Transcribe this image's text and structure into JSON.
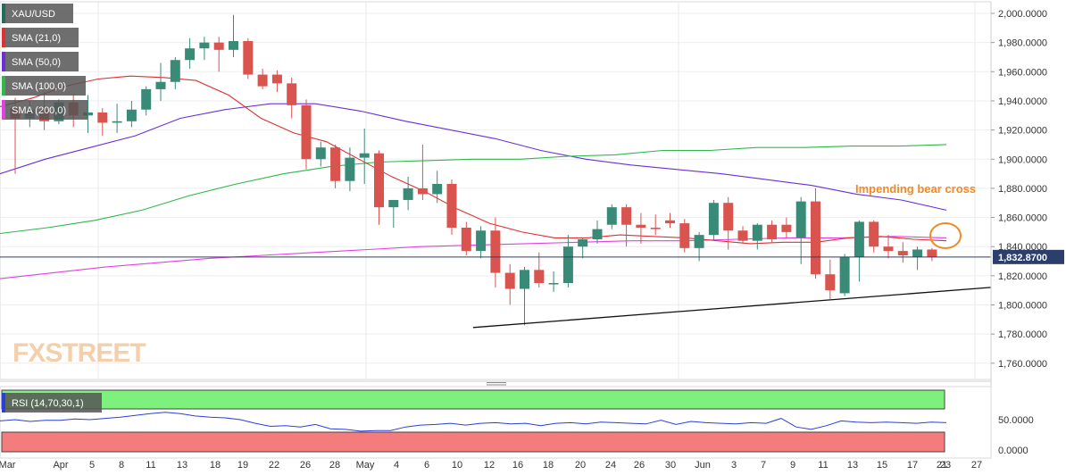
{
  "chart_data": {
    "type": "candlestick",
    "symbol": "XAU/USD",
    "ylim": [
      1750,
      2005
    ],
    "y_ticks": [
      "2,000.0000",
      "1,980.0000",
      "1,960.0000",
      "1,940.0000",
      "1,920.0000",
      "1,900.0000",
      "1,880.0000",
      "1,860.0000",
      "1,840.0000",
      "1,820.0000",
      "1,800.0000",
      "1,780.0000",
      "1,760.0000"
    ],
    "y_tick_values": [
      2000,
      1980,
      1960,
      1940,
      1920,
      1900,
      1880,
      1860,
      1840,
      1820,
      1800,
      1780,
      1760
    ],
    "x_labels": [
      "Mar",
      "Apr",
      "5",
      "8",
      "11",
      "13",
      "18",
      "19",
      "22",
      "26",
      "28",
      "May",
      "4",
      "6",
      "10",
      "12",
      "16",
      "18",
      "20",
      "24",
      "26",
      "30",
      "Jun",
      "3",
      "7",
      "9",
      "11",
      "13",
      "15",
      "17",
      "21",
      "23",
      "27"
    ],
    "last_price": "1,832.8700",
    "last_price_value": 1832.87,
    "indicators": [
      "SMA (21,0)",
      "SMA (50,0)",
      "SMA (100,0)",
      "SMA (200,0)"
    ],
    "indicator_colors": [
      "#e03030",
      "#6a2fd8",
      "#2db84a",
      "#e040e0"
    ],
    "annotation": "Impending bear cross",
    "watermark": "FXSTREET",
    "candles": [
      {
        "o": 1935,
        "h": 1942,
        "l": 1890,
        "c": 1928
      },
      {
        "o": 1928,
        "h": 1940,
        "l": 1922,
        "c": 1934
      },
      {
        "o": 1934,
        "h": 1946,
        "l": 1920,
        "c": 1926
      },
      {
        "o": 1926,
        "h": 1941,
        "l": 1924,
        "c": 1939
      },
      {
        "o": 1939,
        "h": 1945,
        "l": 1922,
        "c": 1930
      },
      {
        "o": 1930,
        "h": 1944,
        "l": 1918,
        "c": 1932
      },
      {
        "o": 1932,
        "h": 1935,
        "l": 1916,
        "c": 1925
      },
      {
        "o": 1925,
        "h": 1938,
        "l": 1918,
        "c": 1926
      },
      {
        "o": 1926,
        "h": 1940,
        "l": 1922,
        "c": 1934
      },
      {
        "o": 1934,
        "h": 1950,
        "l": 1930,
        "c": 1948
      },
      {
        "o": 1948,
        "h": 1966,
        "l": 1940,
        "c": 1953
      },
      {
        "o": 1953,
        "h": 1970,
        "l": 1948,
        "c": 1968
      },
      {
        "o": 1968,
        "h": 1983,
        "l": 1962,
        "c": 1976
      },
      {
        "o": 1976,
        "h": 1984,
        "l": 1968,
        "c": 1980
      },
      {
        "o": 1980,
        "h": 1984,
        "l": 1960,
        "c": 1975
      },
      {
        "o": 1975,
        "h": 1999,
        "l": 1970,
        "c": 1981
      },
      {
        "o": 1981,
        "h": 1983,
        "l": 1955,
        "c": 1958
      },
      {
        "o": 1958,
        "h": 1962,
        "l": 1948,
        "c": 1950
      },
      {
        "o": 1958,
        "h": 1961,
        "l": 1946,
        "c": 1952
      },
      {
        "o": 1952,
        "h": 1956,
        "l": 1928,
        "c": 1937
      },
      {
        "o": 1937,
        "h": 1941,
        "l": 1893,
        "c": 1900
      },
      {
        "o": 1900,
        "h": 1912,
        "l": 1895,
        "c": 1908
      },
      {
        "o": 1908,
        "h": 1910,
        "l": 1880,
        "c": 1885
      },
      {
        "o": 1885,
        "h": 1908,
        "l": 1878,
        "c": 1901
      },
      {
        "o": 1901,
        "h": 1921,
        "l": 1883,
        "c": 1904
      },
      {
        "o": 1904,
        "h": 1906,
        "l": 1855,
        "c": 1867
      },
      {
        "o": 1867,
        "h": 1872,
        "l": 1853,
        "c": 1872
      },
      {
        "o": 1872,
        "h": 1888,
        "l": 1865,
        "c": 1880
      },
      {
        "o": 1880,
        "h": 1910,
        "l": 1872,
        "c": 1876
      },
      {
        "o": 1876,
        "h": 1892,
        "l": 1870,
        "c": 1883
      },
      {
        "o": 1883,
        "h": 1886,
        "l": 1848,
        "c": 1853
      },
      {
        "o": 1853,
        "h": 1857,
        "l": 1834,
        "c": 1837
      },
      {
        "o": 1837,
        "h": 1854,
        "l": 1832,
        "c": 1851
      },
      {
        "o": 1851,
        "h": 1860,
        "l": 1812,
        "c": 1822
      },
      {
        "o": 1822,
        "h": 1828,
        "l": 1800,
        "c": 1811
      },
      {
        "o": 1811,
        "h": 1826,
        "l": 1786,
        "c": 1824
      },
      {
        "o": 1824,
        "h": 1836,
        "l": 1812,
        "c": 1815
      },
      {
        "o": 1815,
        "h": 1823,
        "l": 1809,
        "c": 1815
      },
      {
        "o": 1815,
        "h": 1848,
        "l": 1812,
        "c": 1840
      },
      {
        "o": 1840,
        "h": 1846,
        "l": 1832,
        "c": 1845
      },
      {
        "o": 1845,
        "h": 1858,
        "l": 1842,
        "c": 1852
      },
      {
        "o": 1855,
        "h": 1869,
        "l": 1852,
        "c": 1867
      },
      {
        "o": 1867,
        "h": 1869,
        "l": 1840,
        "c": 1855
      },
      {
        "o": 1855,
        "h": 1863,
        "l": 1842,
        "c": 1853
      },
      {
        "o": 1853,
        "h": 1862,
        "l": 1848,
        "c": 1852
      },
      {
        "o": 1858,
        "h": 1863,
        "l": 1853,
        "c": 1856
      },
      {
        "o": 1856,
        "h": 1859,
        "l": 1836,
        "c": 1839
      },
      {
        "o": 1839,
        "h": 1850,
        "l": 1830,
        "c": 1848
      },
      {
        "o": 1848,
        "h": 1872,
        "l": 1844,
        "c": 1870
      },
      {
        "o": 1870,
        "h": 1874,
        "l": 1838,
        "c": 1851
      },
      {
        "o": 1851,
        "h": 1854,
        "l": 1842,
        "c": 1844
      },
      {
        "o": 1844,
        "h": 1856,
        "l": 1838,
        "c": 1855
      },
      {
        "o": 1855,
        "h": 1858,
        "l": 1843,
        "c": 1845
      },
      {
        "o": 1855,
        "h": 1860,
        "l": 1846,
        "c": 1850
      },
      {
        "o": 1846,
        "h": 1874,
        "l": 1828,
        "c": 1871
      },
      {
        "o": 1871,
        "h": 1880,
        "l": 1818,
        "c": 1821
      },
      {
        "o": 1821,
        "h": 1831,
        "l": 1804,
        "c": 1810
      },
      {
        "o": 1808,
        "h": 1835,
        "l": 1806,
        "c": 1833
      },
      {
        "o": 1833,
        "h": 1858,
        "l": 1816,
        "c": 1857
      },
      {
        "o": 1857,
        "h": 1858,
        "l": 1836,
        "c": 1840
      },
      {
        "o": 1840,
        "h": 1848,
        "l": 1832,
        "c": 1837
      },
      {
        "o": 1837,
        "h": 1843,
        "l": 1829,
        "c": 1834
      },
      {
        "o": 1833,
        "h": 1840,
        "l": 1824,
        "c": 1838
      },
      {
        "o": 1838,
        "h": 1839,
        "l": 1830,
        "c": 1833
      }
    ],
    "sma21": [
      1936,
      1942,
      1950,
      1955,
      1957,
      1956,
      1954,
      1944,
      1928,
      1918,
      1912,
      1900,
      1888,
      1878,
      1866,
      1856,
      1850,
      1846,
      1846,
      1848,
      1847,
      1846,
      1844,
      1842,
      1843,
      1843,
      1846,
      1847,
      1845,
      1844
    ],
    "sma50": [
      1890,
      1900,
      1908,
      1916,
      1928,
      1934,
      1938,
      1938,
      1933,
      1926,
      1920,
      1914,
      1906,
      1900,
      1896,
      1893,
      1890,
      1886,
      1882,
      1876,
      1872,
      1865
    ],
    "sma100": [
      1849,
      1853,
      1858,
      1865,
      1875,
      1883,
      1890,
      1895,
      1898,
      1899,
      1900,
      1900,
      1902,
      1903,
      1906,
      1906,
      1908,
      1908,
      1909,
      1909,
      1910
    ],
    "sma200": [
      1818,
      1822,
      1826,
      1829,
      1832,
      1834,
      1836,
      1838,
      1840,
      1841,
      1842,
      1843,
      1844,
      1844,
      1845,
      1846,
      1846,
      1847,
      1846
    ],
    "rsi_label": "RSI (14,70,30,1)",
    "rsi_ticks": [
      "50.0000",
      "0.0000"
    ],
    "rsi_tick_values": [
      50,
      0
    ],
    "rsi_levels": [
      70,
      30
    ],
    "rsi_values": [
      48,
      50,
      47,
      49,
      49,
      51,
      50,
      52,
      54,
      57,
      60,
      62,
      60,
      56,
      54,
      53,
      50,
      44,
      39,
      40,
      38,
      42,
      35,
      34,
      31,
      32,
      32,
      38,
      41,
      42,
      44,
      41,
      44,
      45,
      43,
      44,
      40,
      44,
      45,
      43,
      46,
      45,
      44,
      43,
      49,
      42,
      47,
      45,
      44,
      43,
      45,
      44,
      52,
      38,
      34,
      40,
      48,
      46,
      45,
      46,
      45,
      44,
      46,
      45
    ]
  }
}
